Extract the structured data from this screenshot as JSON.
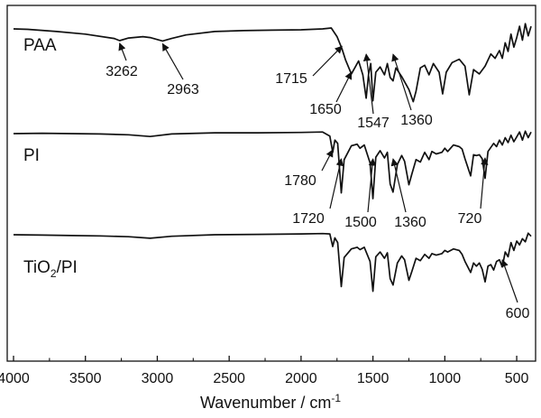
{
  "chart_data": {
    "type": "line",
    "title": "",
    "xlabel": "Wavenumber / cm",
    "xlabel_superscript": "-1",
    "ylabel": "",
    "xlim": [
      4000,
      400
    ],
    "x_ticks": [
      4000,
      3500,
      3000,
      2500,
      2000,
      1500,
      1000,
      500
    ],
    "grid": false,
    "series": [
      {
        "name": "PAA",
        "label_parts": [
          "PAA"
        ],
        "points": [
          [
            4000,
            0
          ],
          [
            3900,
            -0.05
          ],
          [
            3700,
            -0.3
          ],
          [
            3500,
            -0.6
          ],
          [
            3300,
            -1.1
          ],
          [
            3262,
            -1.35
          ],
          [
            3200,
            -1.05
          ],
          [
            3100,
            -0.9
          ],
          [
            3050,
            -1.0
          ],
          [
            2963,
            -1.4
          ],
          [
            2900,
            -1.1
          ],
          [
            2800,
            -0.7
          ],
          [
            2600,
            -0.3
          ],
          [
            2400,
            -0.2
          ],
          [
            2200,
            -0.15
          ],
          [
            2000,
            -0.1
          ],
          [
            1850,
            0
          ],
          [
            1790,
            0.1
          ],
          [
            1750,
            -0.9
          ],
          [
            1715,
            -2.3
          ],
          [
            1690,
            -3.6
          ],
          [
            1650,
            -5.2
          ],
          [
            1620,
            -4.3
          ],
          [
            1600,
            -3.7
          ],
          [
            1570,
            -5.3
          ],
          [
            1547,
            -8.0
          ],
          [
            1530,
            -5.2
          ],
          [
            1515,
            -4.0
          ],
          [
            1500,
            -8.3
          ],
          [
            1480,
            -5.0
          ],
          [
            1450,
            -4.4
          ],
          [
            1420,
            -5.3
          ],
          [
            1400,
            -4.0
          ],
          [
            1380,
            -5.6
          ],
          [
            1360,
            -6.0
          ],
          [
            1340,
            -4.5
          ],
          [
            1300,
            -5.5
          ],
          [
            1250,
            -7.0
          ],
          [
            1220,
            -8.4
          ],
          [
            1200,
            -7.2
          ],
          [
            1170,
            -4.5
          ],
          [
            1140,
            -4.2
          ],
          [
            1110,
            -5.3
          ],
          [
            1080,
            -4.0
          ],
          [
            1040,
            -5.0
          ],
          [
            1015,
            -7.5
          ],
          [
            990,
            -5.0
          ],
          [
            950,
            -3.9
          ],
          [
            900,
            -3.5
          ],
          [
            860,
            -4.3
          ],
          [
            830,
            -7.6
          ],
          [
            800,
            -4.7
          ],
          [
            760,
            -5.2
          ],
          [
            720,
            -4.3
          ],
          [
            680,
            -2.9
          ],
          [
            650,
            -3.4
          ],
          [
            620,
            -2.5
          ],
          [
            600,
            -3.4
          ],
          [
            580,
            -1.6
          ],
          [
            560,
            -2.6
          ],
          [
            540,
            -0.6
          ],
          [
            520,
            -2.1
          ],
          [
            500,
            -1.0
          ],
          [
            480,
            0.3
          ],
          [
            460,
            -1.3
          ],
          [
            440,
            0.6
          ],
          [
            420,
            -0.8
          ],
          [
            400,
            0.3
          ]
        ]
      },
      {
        "name": "PI",
        "label_parts": [
          "PI"
        ],
        "points": [
          [
            4000,
            0
          ],
          [
            3800,
            0.05
          ],
          [
            3600,
            0
          ],
          [
            3400,
            -0.05
          ],
          [
            3200,
            -0.15
          ],
          [
            3050,
            -0.35
          ],
          [
            2900,
            -0.05
          ],
          [
            2600,
            0.1
          ],
          [
            2300,
            0.1
          ],
          [
            2000,
            0.15
          ],
          [
            1850,
            0.2
          ],
          [
            1800,
            -0.3
          ],
          [
            1780,
            -2.3
          ],
          [
            1765,
            -0.8
          ],
          [
            1745,
            -1.2
          ],
          [
            1720,
            -7.3
          ],
          [
            1700,
            -3.2
          ],
          [
            1650,
            -1.5
          ],
          [
            1610,
            -1.3
          ],
          [
            1590,
            -1.8
          ],
          [
            1560,
            -1.4
          ],
          [
            1520,
            -3.6
          ],
          [
            1500,
            -8.0
          ],
          [
            1480,
            -2.9
          ],
          [
            1450,
            -2.1
          ],
          [
            1420,
            -3.0
          ],
          [
            1400,
            -2.3
          ],
          [
            1380,
            -6.2
          ],
          [
            1360,
            -7.2
          ],
          [
            1330,
            -3.8
          ],
          [
            1300,
            -2.7
          ],
          [
            1280,
            -3.4
          ],
          [
            1250,
            -6.3
          ],
          [
            1230,
            -5.0
          ],
          [
            1200,
            -3.2
          ],
          [
            1170,
            -3.5
          ],
          [
            1140,
            -2.3
          ],
          [
            1110,
            -3.2
          ],
          [
            1090,
            -2.2
          ],
          [
            1060,
            -2.5
          ],
          [
            1020,
            -2.3
          ],
          [
            1000,
            -1.8
          ],
          [
            980,
            -2.2
          ],
          [
            940,
            -1.4
          ],
          [
            900,
            -1.6
          ],
          [
            880,
            -1.9
          ],
          [
            860,
            -3.1
          ],
          [
            820,
            -5.2
          ],
          [
            800,
            -2.6
          ],
          [
            780,
            -2.7
          ],
          [
            760,
            -2.6
          ],
          [
            740,
            -3.1
          ],
          [
            720,
            -5.5
          ],
          [
            700,
            -2.2
          ],
          [
            660,
            -1.2
          ],
          [
            640,
            -1.6
          ],
          [
            620,
            -0.8
          ],
          [
            600,
            -1.4
          ],
          [
            580,
            -0.5
          ],
          [
            560,
            -1.1
          ],
          [
            540,
            -0.2
          ],
          [
            520,
            -1.0
          ],
          [
            500,
            -0.4
          ],
          [
            480,
            0.2
          ],
          [
            460,
            -0.8
          ],
          [
            440,
            0.3
          ],
          [
            420,
            -0.5
          ],
          [
            400,
            0.2
          ]
        ]
      },
      {
        "name": "TiO2/PI",
        "label_parts": [
          "TiO",
          "2",
          "/PI"
        ],
        "points": [
          [
            4000,
            0
          ],
          [
            3800,
            -0.05
          ],
          [
            3600,
            -0.1
          ],
          [
            3400,
            -0.15
          ],
          [
            3200,
            -0.25
          ],
          [
            3050,
            -0.45
          ],
          [
            2900,
            -0.2
          ],
          [
            2600,
            0
          ],
          [
            2300,
            0.05
          ],
          [
            2000,
            0.1
          ],
          [
            1850,
            0.15
          ],
          [
            1800,
            0.1
          ],
          [
            1780,
            -1.5
          ],
          [
            1765,
            -0.4
          ],
          [
            1745,
            -1.0
          ],
          [
            1720,
            -6.6
          ],
          [
            1700,
            -2.9
          ],
          [
            1650,
            -1.8
          ],
          [
            1610,
            -1.6
          ],
          [
            1590,
            -1.9
          ],
          [
            1560,
            -1.6
          ],
          [
            1520,
            -3.4
          ],
          [
            1500,
            -7.2
          ],
          [
            1480,
            -2.8
          ],
          [
            1450,
            -2.2
          ],
          [
            1420,
            -3.0
          ],
          [
            1400,
            -2.3
          ],
          [
            1380,
            -5.6
          ],
          [
            1360,
            -6.4
          ],
          [
            1330,
            -3.6
          ],
          [
            1300,
            -2.7
          ],
          [
            1280,
            -3.2
          ],
          [
            1250,
            -5.8
          ],
          [
            1230,
            -4.7
          ],
          [
            1200,
            -3.0
          ],
          [
            1170,
            -3.3
          ],
          [
            1140,
            -2.5
          ],
          [
            1110,
            -3.0
          ],
          [
            1090,
            -2.4
          ],
          [
            1060,
            -2.6
          ],
          [
            1020,
            -2.4
          ],
          [
            1000,
            -2.0
          ],
          [
            980,
            -2.2
          ],
          [
            940,
            -1.8
          ],
          [
            900,
            -2.0
          ],
          [
            880,
            -2.5
          ],
          [
            860,
            -3.4
          ],
          [
            820,
            -4.8
          ],
          [
            800,
            -3.6
          ],
          [
            780,
            -4.0
          ],
          [
            760,
            -3.6
          ],
          [
            740,
            -4.4
          ],
          [
            720,
            -6.0
          ],
          [
            700,
            -4.0
          ],
          [
            680,
            -3.8
          ],
          [
            660,
            -4.5
          ],
          [
            640,
            -3.4
          ],
          [
            620,
            -3.2
          ],
          [
            600,
            -4.1
          ],
          [
            580,
            -2.2
          ],
          [
            560,
            -2.8
          ],
          [
            540,
            -1.0
          ],
          [
            520,
            -2.0
          ],
          [
            500,
            -0.8
          ],
          [
            480,
            -1.3
          ],
          [
            460,
            -0.5
          ],
          [
            440,
            -0.9
          ],
          [
            420,
            0.2
          ],
          [
            400,
            -0.2
          ]
        ]
      }
    ],
    "annotations": [
      {
        "text": "3262",
        "series": "PAA"
      },
      {
        "text": "2963",
        "series": "PAA"
      },
      {
        "text": "1715",
        "series": "PAA"
      },
      {
        "text": "1650",
        "series": "PAA"
      },
      {
        "text": "1547",
        "series": "PAA"
      },
      {
        "text": "1360",
        "series": "PAA"
      },
      {
        "text": "1780",
        "series": "PI"
      },
      {
        "text": "1720",
        "series": "PI"
      },
      {
        "text": "1500",
        "series": "PI"
      },
      {
        "text": "1360",
        "series": "PI"
      },
      {
        "text": "720",
        "series": "PI"
      },
      {
        "text": "600",
        "series": "TiO2/PI"
      }
    ]
  }
}
